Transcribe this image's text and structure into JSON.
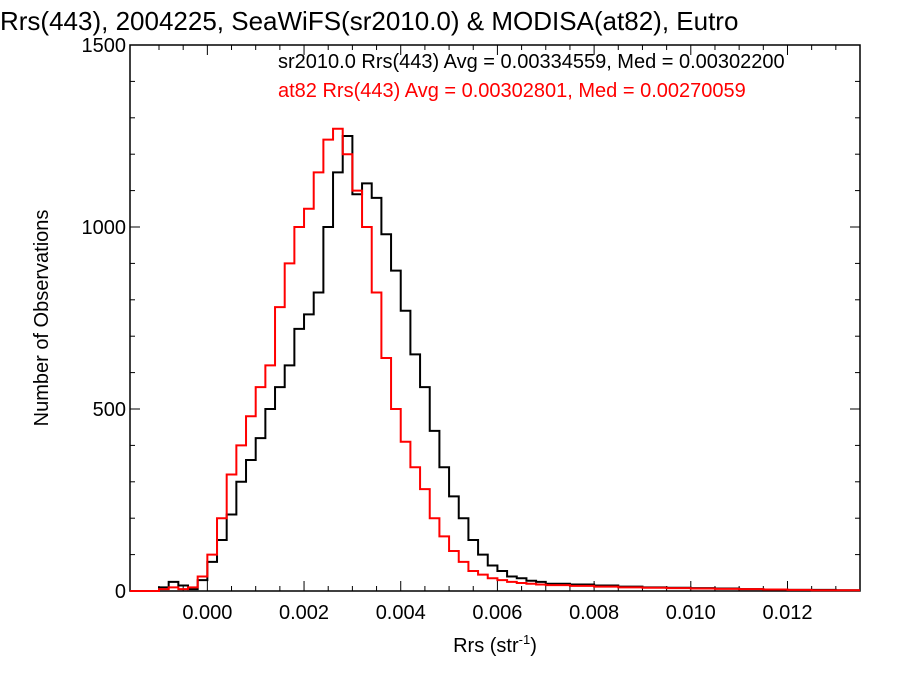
{
  "chart_data": {
    "type": "line",
    "title": "Rrs(443), 2004225, SeaWiFS(sr2010.0) & MODISA(at82), Eutro",
    "xlabel": "Rrs (str",
    "xlabel_sup": "-1",
    "xlabel_end": ")",
    "ylabel": "Number of Observations",
    "xlim": [
      -0.0016,
      0.0135
    ],
    "ylim": [
      0,
      1500
    ],
    "xticks": [
      0.0,
      0.002,
      0.004,
      0.006,
      0.008,
      0.01,
      0.012
    ],
    "xtick_labels": [
      "0.000",
      "0.002",
      "0.004",
      "0.006",
      "0.008",
      "0.010",
      "0.012"
    ],
    "yticks": [
      0,
      500,
      1000,
      1500
    ],
    "ytick_labels": [
      "0",
      "500",
      "1000",
      "1500"
    ],
    "grid": false,
    "legend_position": "top-right",
    "series": [
      {
        "name": "sr2010.0",
        "label": "sr2010.0 Rrs(443) Avg = 0.00334559, Med = 0.00302200",
        "color": "#000000",
        "x": [
          -0.0016,
          -0.0012,
          -0.001,
          -0.0008,
          -0.0006,
          -0.0004,
          -0.0002,
          0.0,
          0.0002,
          0.0004,
          0.0006,
          0.0008,
          0.001,
          0.0012,
          0.0014,
          0.0016,
          0.0018,
          0.002,
          0.0022,
          0.0024,
          0.0026,
          0.0028,
          0.003,
          0.0032,
          0.0034,
          0.0036,
          0.0038,
          0.004,
          0.0042,
          0.0044,
          0.0046,
          0.0048,
          0.005,
          0.0052,
          0.0054,
          0.0056,
          0.0058,
          0.006,
          0.0062,
          0.0064,
          0.0066,
          0.0068,
          0.007,
          0.0075,
          0.008,
          0.0085,
          0.009,
          0.0095,
          0.01,
          0.0105,
          0.011,
          0.0115,
          0.012,
          0.0125,
          0.013,
          0.0135
        ],
        "values": [
          0,
          0,
          10,
          25,
          15,
          5,
          30,
          80,
          140,
          210,
          300,
          360,
          420,
          500,
          560,
          620,
          720,
          760,
          820,
          1000,
          1150,
          1250,
          1090,
          1120,
          1080,
          980,
          880,
          770,
          650,
          560,
          440,
          340,
          260,
          200,
          140,
          100,
          70,
          55,
          40,
          35,
          28,
          25,
          20,
          18,
          15,
          12,
          10,
          9,
          8,
          7,
          5,
          4,
          3,
          3,
          2,
          2
        ]
      },
      {
        "name": "at82",
        "label": "at82 Rrs(443) Avg = 0.00302801, Med = 0.00270059",
        "color": "#ff0000",
        "x": [
          -0.0016,
          -0.0012,
          -0.001,
          -0.0008,
          -0.0006,
          -0.0004,
          -0.0002,
          0.0,
          0.0002,
          0.0004,
          0.0006,
          0.0008,
          0.001,
          0.0012,
          0.0014,
          0.0016,
          0.0018,
          0.002,
          0.0022,
          0.0024,
          0.0026,
          0.0028,
          0.003,
          0.0032,
          0.0034,
          0.0036,
          0.0038,
          0.004,
          0.0042,
          0.0044,
          0.0046,
          0.0048,
          0.005,
          0.0052,
          0.0054,
          0.0056,
          0.0058,
          0.006,
          0.0062,
          0.0064,
          0.0066,
          0.0068,
          0.007,
          0.0075,
          0.008,
          0.0085,
          0.009,
          0.0095,
          0.01,
          0.0105,
          0.011,
          0.0115,
          0.012,
          0.0125,
          0.013,
          0.0135
        ],
        "values": [
          0,
          0,
          5,
          10,
          5,
          10,
          40,
          100,
          200,
          320,
          400,
          480,
          560,
          620,
          780,
          900,
          1000,
          1050,
          1150,
          1240,
          1270,
          1200,
          1100,
          1000,
          820,
          640,
          500,
          410,
          340,
          280,
          200,
          150,
          110,
          80,
          55,
          45,
          35,
          30,
          25,
          22,
          20,
          18,
          16,
          14,
          12,
          10,
          9,
          8,
          7,
          6,
          5,
          4,
          3,
          2,
          2,
          2
        ]
      }
    ]
  }
}
